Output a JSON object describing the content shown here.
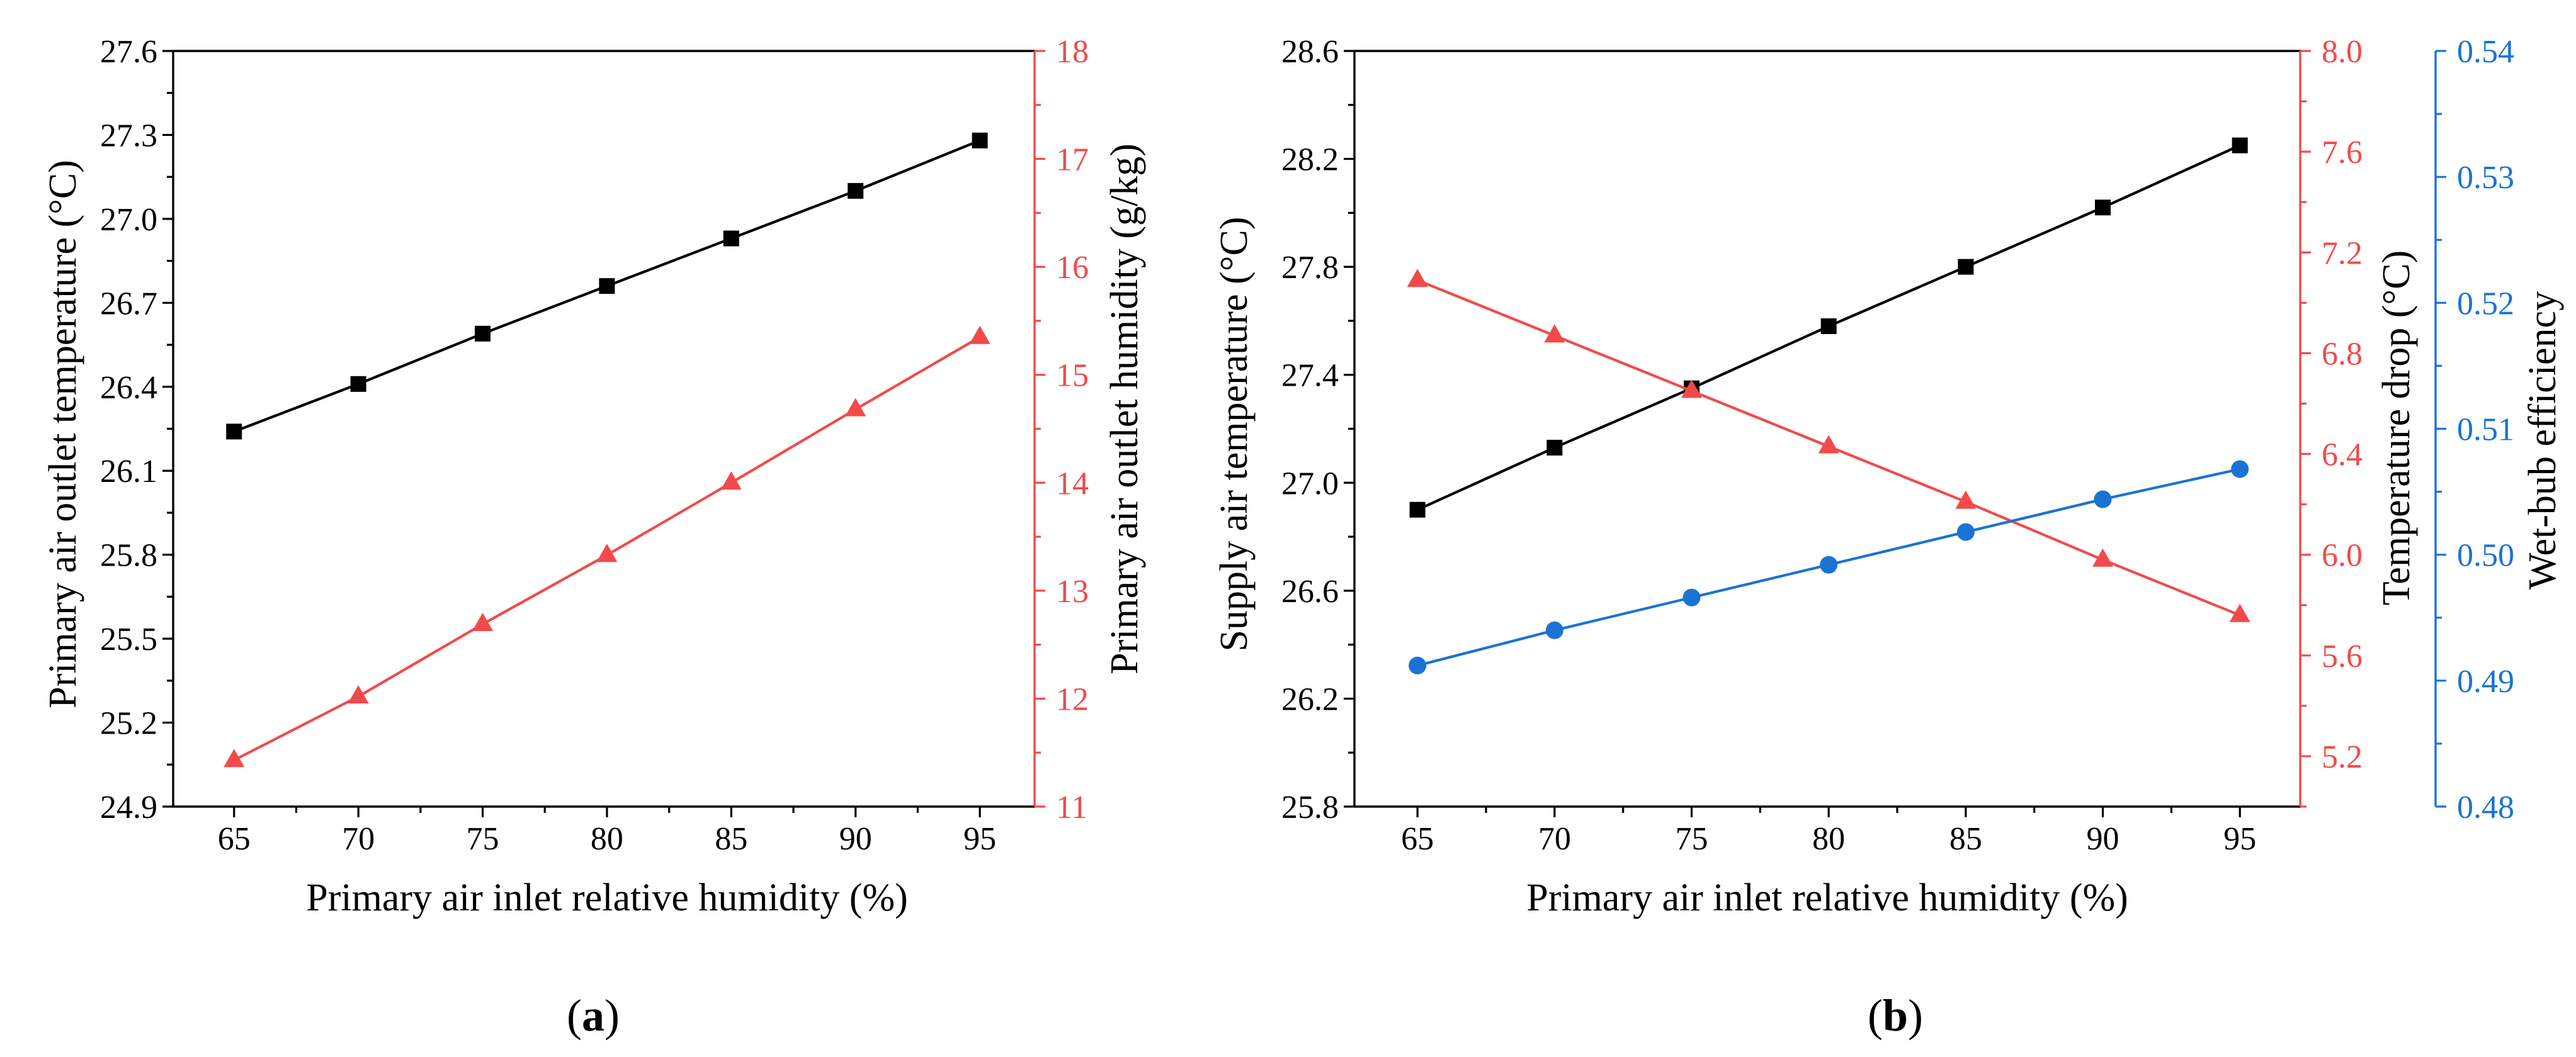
{
  "chart_data": [
    {
      "type": "line",
      "caption": {
        "open": "(",
        "letter": "a",
        "close": ")"
      },
      "xlabel": "Primary air inlet relative humidity (%)",
      "x": [
        65,
        70,
        75,
        80,
        85,
        90,
        95
      ],
      "xticks": [
        "65",
        "70",
        "75",
        "80",
        "85",
        "90",
        "95"
      ],
      "xlim": [
        62.55,
        97.2
      ],
      "grid": false,
      "axes": [
        {
          "label": "Primary air outlet temperature (°C)",
          "color": "#000000",
          "lim": [
            24.9,
            27.6
          ],
          "ticks": [
            "24.9",
            "25.2",
            "25.5",
            "25.8",
            "26.1",
            "26.4",
            "26.7",
            "27.0",
            "27.3",
            "27.6"
          ]
        },
        {
          "label": "Primary air outlet humidity (g/kg)",
          "color": "#f24a4a",
          "lim": [
            11,
            18
          ],
          "ticks": [
            "11",
            "12",
            "13",
            "14",
            "15",
            "16",
            "17",
            "18"
          ]
        }
      ],
      "series": [
        {
          "axis": 0,
          "marker": "square",
          "color": "#000000",
          "values": [
            26.24,
            26.41,
            26.59,
            26.76,
            26.93,
            27.1,
            27.28
          ]
        },
        {
          "axis": 1,
          "marker": "triangle",
          "color": "#f24a4a",
          "values": [
            11.43,
            12.02,
            12.69,
            13.33,
            14.0,
            14.68,
            15.35
          ]
        }
      ]
    },
    {
      "type": "line",
      "caption": {
        "open": "(",
        "letter": "b",
        "close": ")"
      },
      "xlabel": "Primary air inlet relative humidity (%)",
      "x": [
        65,
        70,
        75,
        80,
        85,
        90,
        95
      ],
      "xticks": [
        "65",
        "70",
        "75",
        "80",
        "85",
        "90",
        "95"
      ],
      "xlim": [
        62.7,
        97.2
      ],
      "grid": false,
      "axes": [
        {
          "label": "Supply air temperature (°C)",
          "color": "#000000",
          "lim": [
            25.8,
            28.6
          ],
          "ticks": [
            "25.8",
            "26.2",
            "26.6",
            "27.0",
            "27.4",
            "27.8",
            "28.2",
            "28.6"
          ]
        },
        {
          "label": "Temperature drop (°C)",
          "color": "#f24a4a",
          "lim": [
            5.0,
            8.0
          ],
          "ticks": [
            "5.2",
            "5.6",
            "6.0",
            "6.4",
            "6.8",
            "7.2",
            "7.6",
            "8.0"
          ]
        },
        {
          "label": "Wet-bub efficiency",
          "color": "#1a73d4",
          "lim": [
            0.48,
            0.54
          ],
          "ticks": [
            "0.48",
            "0.49",
            "0.50",
            "0.51",
            "0.52",
            "0.53",
            "0.54"
          ]
        }
      ],
      "series": [
        {
          "axis": 0,
          "marker": "square",
          "color": "#000000",
          "values": [
            26.9,
            27.13,
            27.35,
            27.58,
            27.8,
            28.02,
            28.25
          ]
        },
        {
          "axis": 1,
          "marker": "triangle",
          "color": "#f24a4a",
          "values": [
            7.09,
            6.87,
            6.65,
            6.43,
            6.21,
            5.98,
            5.76
          ]
        },
        {
          "axis": 2,
          "marker": "circle",
          "color": "#1a73d4",
          "values": [
            0.4912,
            0.494,
            0.4966,
            0.4992,
            0.5018,
            0.5044,
            0.5068
          ]
        }
      ]
    }
  ]
}
